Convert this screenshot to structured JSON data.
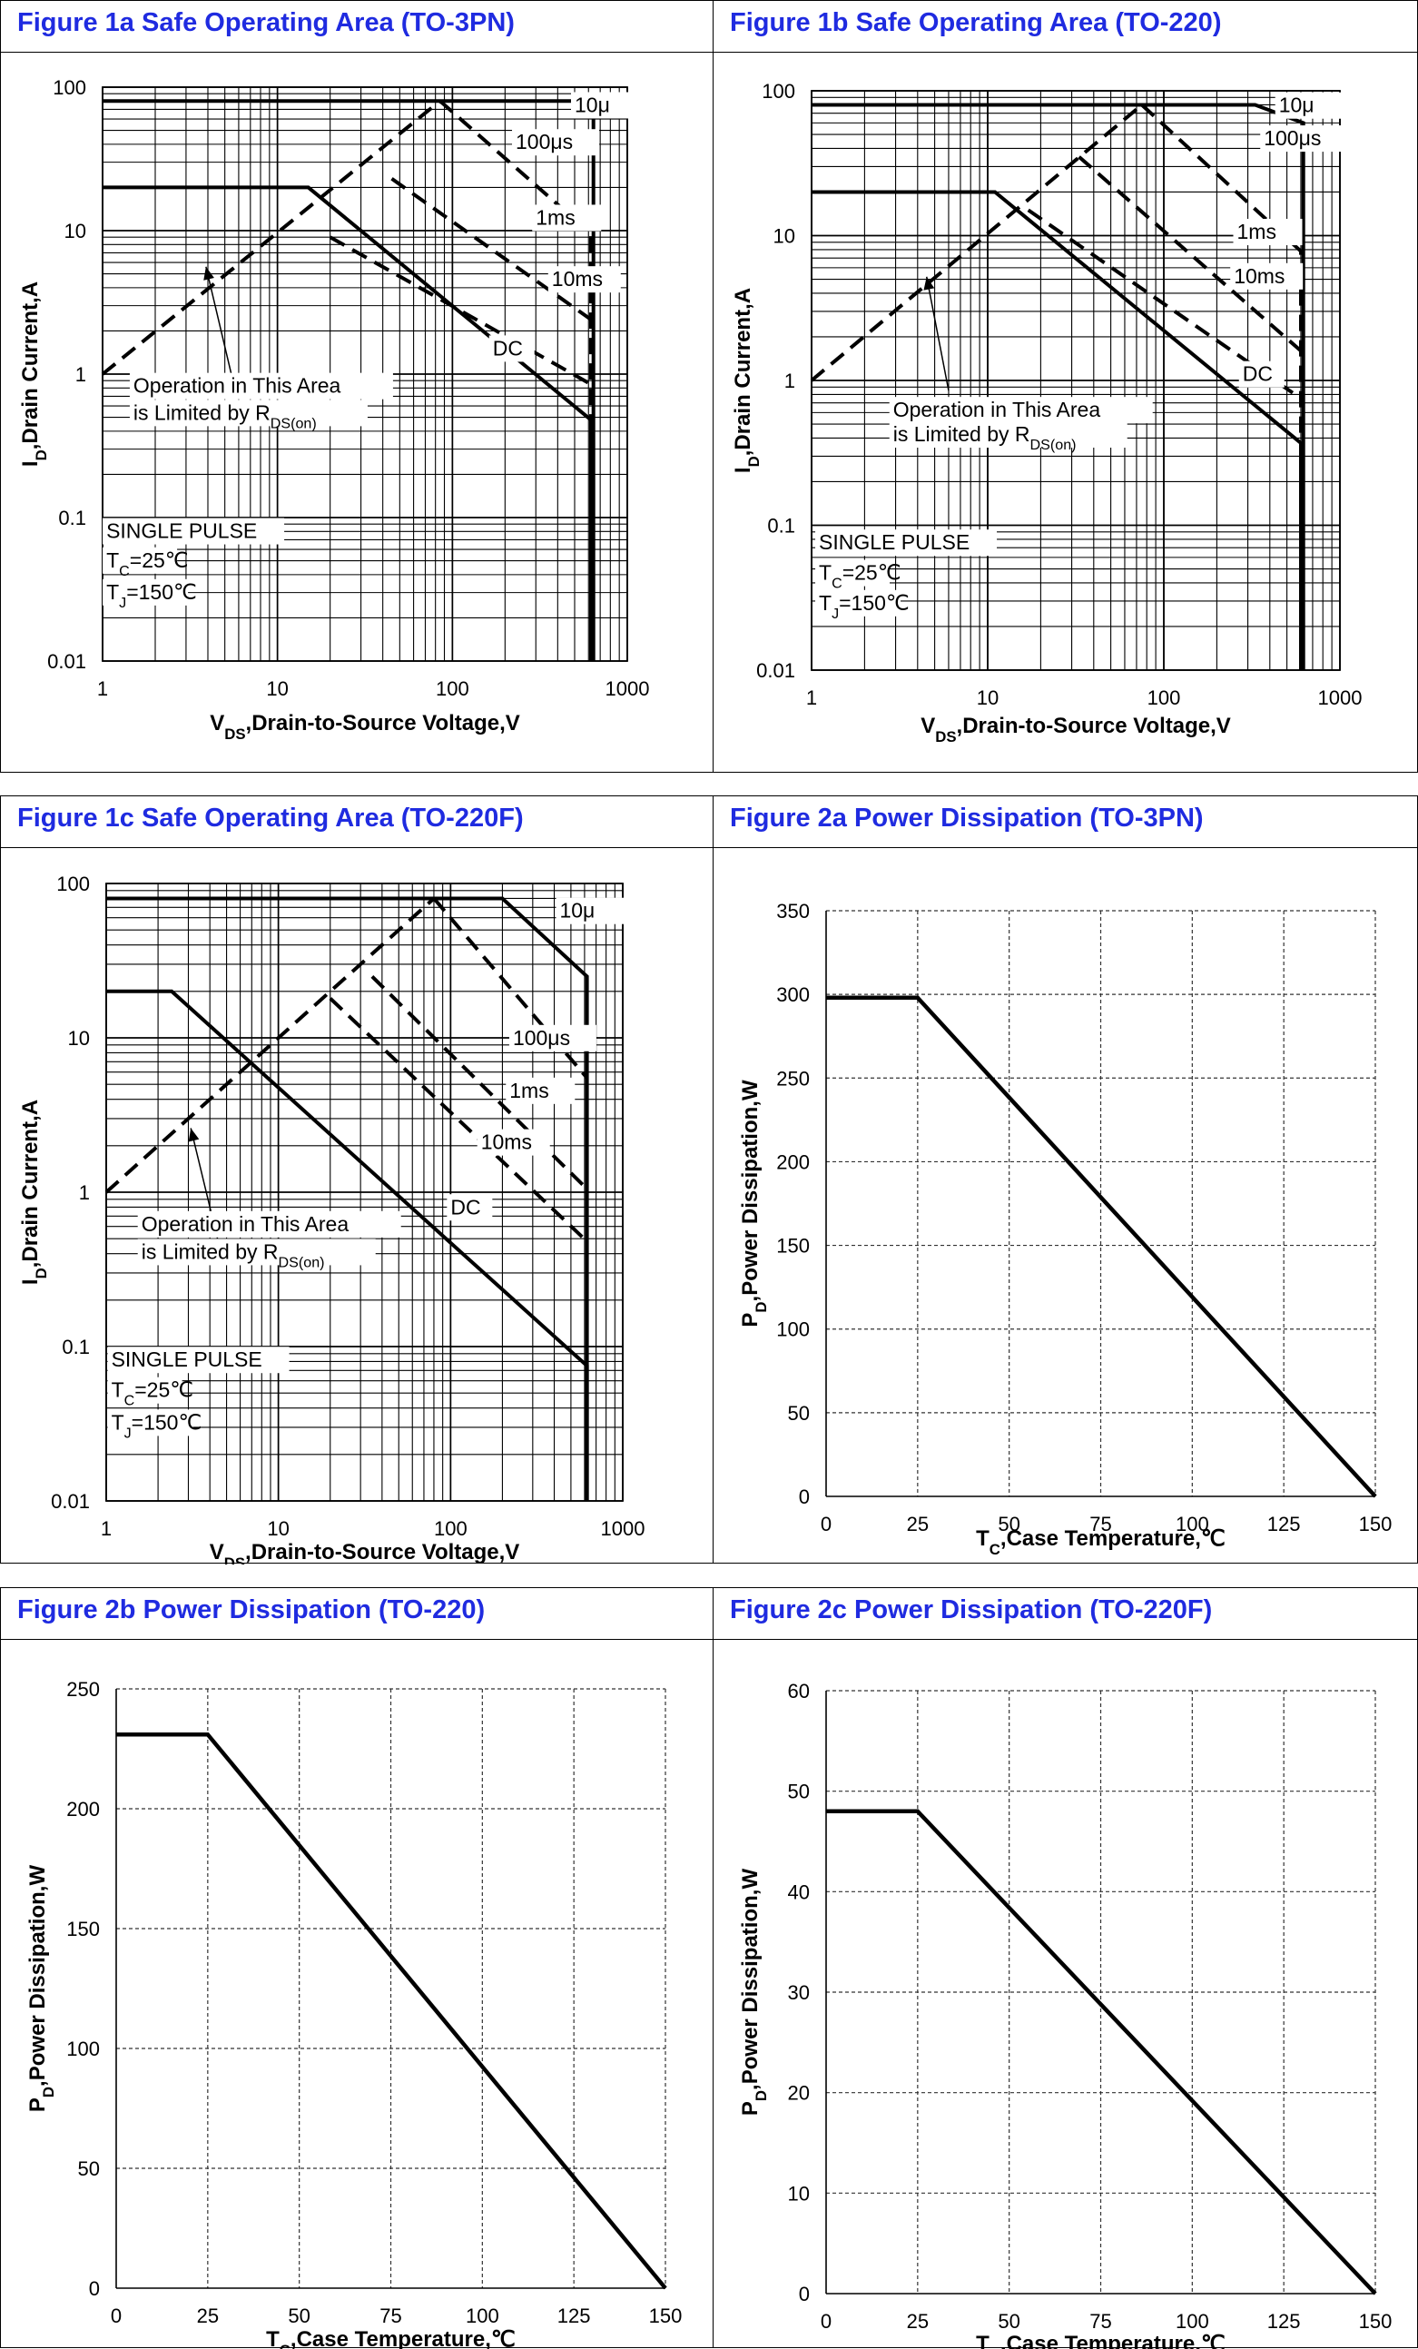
{
  "charts": [
    {
      "title": "Figure 1a Safe Operating Area (TO-3PN)",
      "xlabel": "V<sub>DS</sub>,Drain-to-Source Voltage,V",
      "ylabel": "I<sub>D</sub>,Drain Current,A"
    },
    {
      "title": "Figure 1b Safe Operating Area (TO-220)",
      "xlabel": "V<sub>DS</sub>,Drain-to-Source Voltage,V",
      "ylabel": "I<sub>D</sub>,Drain Current,A"
    },
    {
      "title": "Figure 1c Safe Operating Area (TO-220F)",
      "xlabel": "V<sub>DS</sub>,Drain-to-Source Voltage,V",
      "ylabel": "I<sub>D</sub>,Drain Current,A"
    },
    {
      "title": "Figure 2a Power Dissipation (TO-3PN)",
      "xlabel": "T<sub>C</sub>,Case Temperature,℃",
      "ylabel": "P<sub>D</sub>,Power Dissipation,W"
    },
    {
      "title": "Figure 2b Power Dissipation (TO-220)",
      "xlabel": "T<sub>C</sub>,Case Temperature,℃",
      "ylabel": "P<sub>D</sub>,Power Dissipation,W"
    },
    {
      "title": "Figure 2c Power Dissipation (TO-220F)",
      "xlabel": "T<sub>C</sub>,Case Temperature,℃",
      "ylabel": "P<sub>D</sub>,Power Dissipation,W"
    }
  ],
  "chart_data": [
    {
      "type": "line",
      "xscale": "log",
      "yscale": "log",
      "xlim": [
        1,
        1000
      ],
      "ylim": [
        0.01,
        100
      ],
      "xticks": [
        "1",
        "10",
        "100",
        "1000"
      ],
      "yticks": [
        "0.01",
        "0.1",
        "1",
        "10",
        "100"
      ],
      "grid": true,
      "series": [
        {
          "name": "DC",
          "style": "solid",
          "points": [
            [
              1,
              20
            ],
            [
              15,
              20
            ],
            [
              620,
              0.48
            ],
            [
              620,
              0.01
            ]
          ]
        },
        {
          "name": "10μ",
          "style": "solid",
          "points": [
            [
              1,
              80
            ],
            [
              590,
              80
            ],
            [
              640,
              70
            ],
            [
              640,
              0.01
            ]
          ]
        },
        {
          "name": "100μs",
          "style": "dashed",
          "points": [
            [
              85,
              80
            ],
            [
              620,
              9.5
            ],
            [
              620,
              0.01
            ]
          ]
        },
        {
          "name": "1ms",
          "style": "dashed",
          "points": [
            [
              45,
              23
            ],
            [
              620,
              2.4
            ]
          ]
        },
        {
          "name": "10ms",
          "style": "dashed",
          "points": [
            [
              20,
              9
            ],
            [
              620,
              0.85
            ]
          ]
        },
        {
          "name": "Rds",
          "style": "dashed",
          "points": [
            [
              1,
              1
            ],
            [
              85,
              80
            ]
          ]
        }
      ],
      "annotations": [
        {
          "text": "10μ",
          "x": 500,
          "y": 67
        },
        {
          "text": "100μs",
          "x": 230,
          "y": 37
        },
        {
          "text": "1ms",
          "x": 300,
          "y": 11
        },
        {
          "text": "10ms",
          "x": 370,
          "y": 4.1
        },
        {
          "text": "DC",
          "x": 170,
          "y": 1.35
        },
        {
          "text": "Operation in This Area",
          "x": 1.5,
          "y": 0.74
        },
        {
          "text": "is Limited by R<sub>DS(on)</sub>",
          "x": 1.5,
          "y": 0.48
        },
        {
          "text": "SINGLE PULSE",
          "x": 1.05,
          "y": 0.072
        },
        {
          "text": "T<sub>C</sub>=25℃",
          "x": 1.05,
          "y": 0.045
        },
        {
          "text": "T<sub>J</sub>=150℃",
          "x": 1.05,
          "y": 0.027
        }
      ],
      "arrow": {
        "from": [
          5.5,
          0.95
        ],
        "to": [
          3.9,
          5.6
        ]
      }
    },
    {
      "type": "line",
      "xscale": "log",
      "yscale": "log",
      "xlim": [
        1,
        1000
      ],
      "ylim": [
        0.01,
        100
      ],
      "xticks": [
        "1",
        "10",
        "100",
        "1000"
      ],
      "yticks": [
        "0.01",
        "0.1",
        "1",
        "10",
        "100"
      ],
      "grid": true,
      "series": [
        {
          "name": "DC",
          "style": "solid",
          "points": [
            [
              1,
              20
            ],
            [
              11,
              20
            ],
            [
              600,
              0.37
            ],
            [
              600,
              0.01
            ]
          ]
        },
        {
          "name": "10μ",
          "style": "solid",
          "points": [
            [
              1,
              80
            ],
            [
              330,
              80
            ],
            [
              620,
              60
            ],
            [
              620,
              0.01
            ]
          ]
        },
        {
          "name": "100μs",
          "style": "dashed",
          "points": [
            [
              75,
              80
            ],
            [
              600,
              7.8
            ],
            [
              600,
              0.01
            ]
          ]
        },
        {
          "name": "1ms",
          "style": "dashed",
          "points": [
            [
              33,
              35
            ],
            [
              600,
              1.6
            ]
          ]
        },
        {
          "name": "10ms",
          "style": "dashed",
          "points": [
            [
              17,
              15
            ],
            [
              600,
              0.75
            ]
          ]
        },
        {
          "name": "Rds",
          "style": "dashed",
          "points": [
            [
              1,
              1
            ],
            [
              75,
              80
            ]
          ]
        }
      ],
      "annotations": [
        {
          "text": "10μ",
          "x": 450,
          "y": 71
        },
        {
          "text": "100μs",
          "x": 370,
          "y": 42
        },
        {
          "text": "1ms",
          "x": 260,
          "y": 9.5
        },
        {
          "text": "10ms",
          "x": 250,
          "y": 4.7
        },
        {
          "text": "DC",
          "x": 280,
          "y": 0.99
        },
        {
          "text": "Operation in This Area",
          "x": 2.9,
          "y": 0.56
        },
        {
          "text": "is Limited by R<sub>DS(on)</sub>",
          "x": 2.9,
          "y": 0.38
        },
        {
          "text": "SINGLE PULSE",
          "x": 1.1,
          "y": 0.068
        },
        {
          "text": "T<sub>C</sub>=25℃",
          "x": 1.1,
          "y": 0.042
        },
        {
          "text": "T<sub>J</sub>=150℃",
          "x": 1.1,
          "y": 0.026
        }
      ],
      "arrow": {
        "from": [
          6.0,
          0.85
        ],
        "to": [
          4.5,
          5.2
        ]
      }
    },
    {
      "type": "line",
      "xscale": "log",
      "yscale": "log",
      "xlim": [
        1,
        1000
      ],
      "ylim": [
        0.01,
        100
      ],
      "xticks": [
        "1",
        "10",
        "100",
        "1000"
      ],
      "yticks": [
        "0.01",
        "0.1",
        "1",
        "10",
        "100"
      ],
      "grid": true,
      "series": [
        {
          "name": "DC",
          "style": "solid",
          "points": [
            [
              1,
              20
            ],
            [
              2.4,
              20
            ],
            [
              620,
              0.075
            ],
            [
              620,
              0.01
            ]
          ]
        },
        {
          "name": "10μ",
          "style": "solid",
          "points": [
            [
              1,
              80
            ],
            [
              200,
              80
            ],
            [
              620,
              25
            ],
            [
              620,
              0.01
            ]
          ]
        },
        {
          "name": "100μs",
          "style": "dashed",
          "points": [
            [
              80,
              80
            ],
            [
              620,
              5.5
            ]
          ]
        },
        {
          "name": "1ms",
          "style": "dashed",
          "points": [
            [
              35,
              25
            ],
            [
              620,
              1.05
            ]
          ]
        },
        {
          "name": "10ms",
          "style": "dashed",
          "points": [
            [
              20,
              18
            ],
            [
              620,
              0.48
            ]
          ]
        },
        {
          "name": "Rds",
          "style": "dashed",
          "points": [
            [
              1,
              1
            ],
            [
              80,
              80
            ]
          ]
        }
      ],
      "annotations": [
        {
          "text": "10μ",
          "x": 430,
          "y": 60
        },
        {
          "text": "100μs",
          "x": 230,
          "y": 9
        },
        {
          "text": "1ms",
          "x": 220,
          "y": 4.1
        },
        {
          "text": "10ms",
          "x": 150,
          "y": 1.9
        },
        {
          "text": "DC",
          "x": 100,
          "y": 0.72
        },
        {
          "text": "Operation in This Area",
          "x": 1.6,
          "y": 0.56
        },
        {
          "text": "is Limited by R<sub>DS(on)</sub>",
          "x": 1.6,
          "y": 0.37
        },
        {
          "text": "SINGLE PULSE",
          "x": 1.07,
          "y": 0.074
        },
        {
          "text": "T<sub>C</sub>=25℃",
          "x": 1.07,
          "y": 0.047
        },
        {
          "text": "T<sub>J</sub>=150℃",
          "x": 1.07,
          "y": 0.029
        }
      ],
      "arrow": {
        "from": [
          4.6,
          0.42
        ],
        "to": [
          3.1,
          2.6
        ]
      }
    },
    {
      "type": "line",
      "xlim": [
        0,
        150
      ],
      "ylim": [
        0,
        350
      ],
      "xticks": [
        "0",
        "25",
        "50",
        "75",
        "100",
        "125",
        "150"
      ],
      "yticks": [
        "0",
        "50",
        "100",
        "150",
        "200",
        "250",
        "300",
        "350"
      ],
      "grid": true,
      "series": [
        {
          "name": "",
          "style": "solid",
          "points": [
            [
              0,
              298
            ],
            [
              25,
              298
            ],
            [
              150,
              0
            ]
          ]
        }
      ]
    },
    {
      "type": "line",
      "xlim": [
        0,
        150
      ],
      "ylim": [
        0,
        250
      ],
      "xticks": [
        "0",
        "25",
        "50",
        "75",
        "100",
        "125",
        "150"
      ],
      "yticks": [
        "0",
        "50",
        "100",
        "150",
        "200",
        "250"
      ],
      "grid": true,
      "series": [
        {
          "name": "",
          "style": "solid",
          "points": [
            [
              0,
              231
            ],
            [
              25,
              231
            ],
            [
              150,
              0
            ]
          ]
        }
      ]
    },
    {
      "type": "line",
      "xlim": [
        0,
        150
      ],
      "ylim": [
        0,
        60
      ],
      "xticks": [
        "0",
        "25",
        "50",
        "75",
        "100",
        "125",
        "150"
      ],
      "yticks": [
        "0",
        "10",
        "20",
        "30",
        "40",
        "50",
        "60"
      ],
      "grid": true,
      "series": [
        {
          "name": "",
          "style": "solid",
          "points": [
            [
              0,
              48
            ],
            [
              25,
              48
            ],
            [
              150,
              0
            ]
          ]
        }
      ]
    }
  ]
}
